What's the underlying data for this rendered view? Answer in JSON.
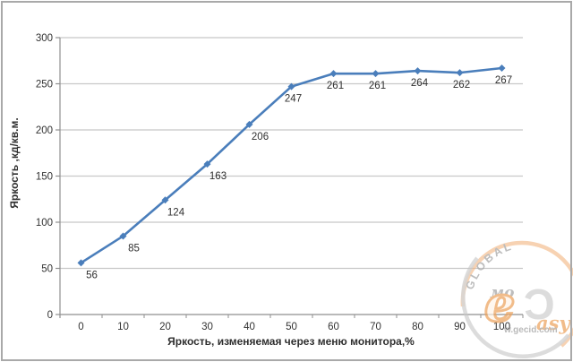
{
  "chart_data": {
    "type": "line",
    "title": "",
    "categories": [
      "0",
      "10",
      "20",
      "30",
      "40",
      "50",
      "60",
      "70",
      "80",
      "90",
      "100"
    ],
    "series": [
      {
        "name": "Яркость",
        "values": [
          56,
          85,
          124,
          163,
          206,
          247,
          261,
          261,
          264,
          262,
          267
        ],
        "color": "#4a7ebb",
        "marker": "diamond"
      }
    ],
    "data_labels": [
      56,
      85,
      124,
      163,
      206,
      247,
      261,
      261,
      264,
      262,
      267
    ],
    "xlabel": "Яркость, изменяемая через меню монитора,%",
    "ylabel": "Яркость ,кд/кв.м.",
    "ylim": [
      0,
      300
    ],
    "yticks": [
      0,
      50,
      100,
      150,
      200,
      250,
      300
    ],
    "grid": true,
    "legend_position": "none",
    "colors": {
      "gridline": "#c8c8c8",
      "axis": "#8f8f8f",
      "tick_text": "#333333",
      "data_label_text": "#2f2f2f"
    }
  },
  "watermark": {
    "arc_text": "GLOBAL",
    "script_text": "мо",
    "logo_e": "e",
    "logo_c": "Ɔ",
    "logo_tail": "asy",
    "domain": "w.gecid.com",
    "orange": "#eda35e",
    "gray": "#b9b9b9",
    "text_gray": "#a5a5a5"
  }
}
